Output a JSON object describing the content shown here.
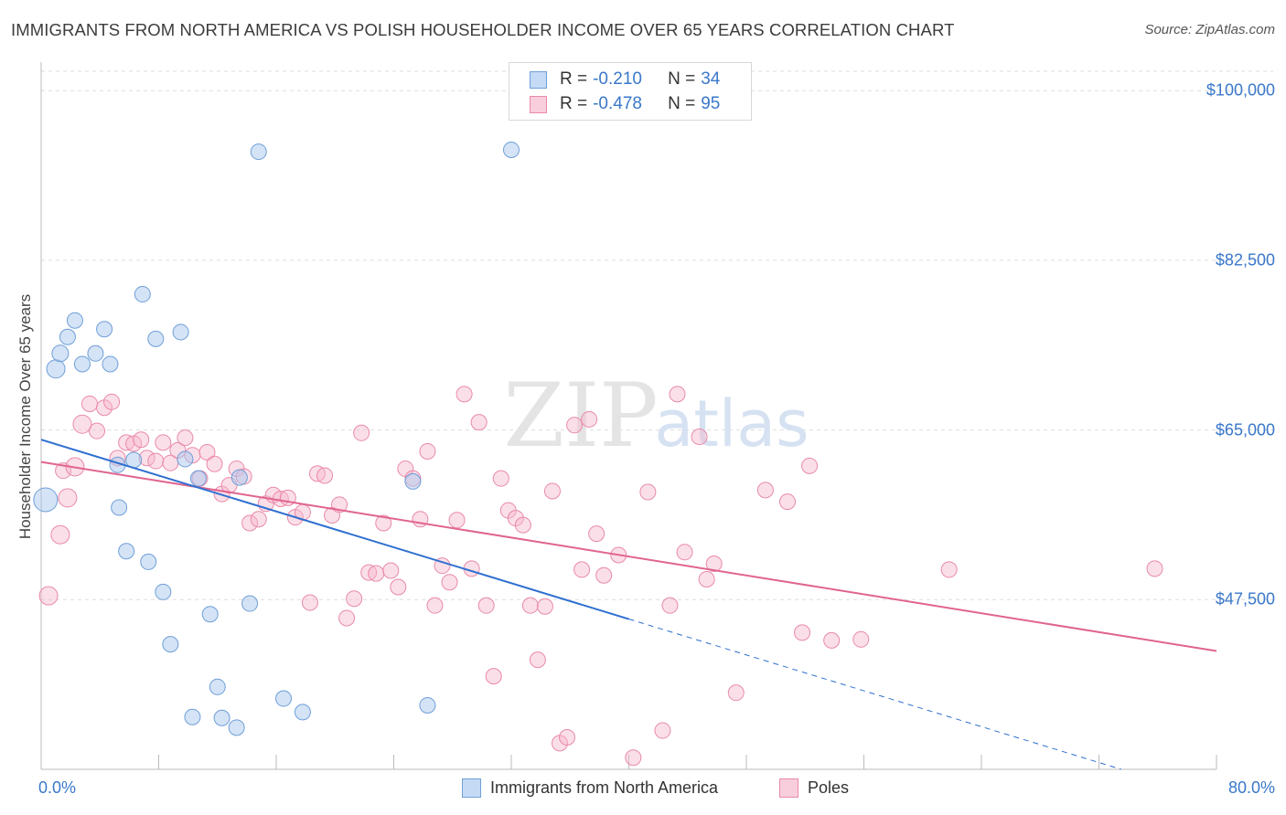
{
  "title": "IMMIGRANTS FROM NORTH AMERICA VS POLISH HOUSEHOLDER INCOME OVER 65 YEARS CORRELATION CHART",
  "source": "Source: ZipAtlas.com",
  "watermark": {
    "zip": "ZIP",
    "atlas": "atlas"
  },
  "legend_top": {
    "rows": [
      {
        "r_label": "R = ",
        "r_value": "-0.210",
        "n_label": "N = ",
        "n_value": "34"
      },
      {
        "r_label": "R = ",
        "r_value": "-0.478",
        "n_label": "N = ",
        "n_value": "95"
      }
    ]
  },
  "legend_bottom": [
    "Immigrants from North America",
    "Poles"
  ],
  "colors": {
    "blue_fill": "#a9c8ee",
    "blue_stroke": "#6f9fd8",
    "blue_line": "#2e6fd0",
    "pink_fill": "#f6b7cb",
    "pink_stroke": "#e98aa9",
    "pink_line": "#e06490",
    "tick_label": "#3a78c9",
    "grid": "#dddddd"
  },
  "chart_data": {
    "type": "scatter",
    "title": "IMMIGRANTS FROM NORTH AMERICA VS POLISH HOUSEHOLDER INCOME OVER 65 YEARS CORRELATION CHART",
    "xlabel": "",
    "ylabel": "Householder Income Over 65 years",
    "xlim": [
      0,
      80
    ],
    "ylim": [
      30000,
      102000
    ],
    "x_tick_labels": [
      "0.0%",
      "80.0%"
    ],
    "y_ticks": [
      47500,
      65000,
      82500,
      100000
    ],
    "y_tick_labels": [
      "$47,500",
      "$65,000",
      "$82,500",
      "$100,000"
    ],
    "grid": true,
    "legend_position": "top-center",
    "series": [
      {
        "name": "Immigrants from North America",
        "r": -0.21,
        "n": 34,
        "trend": {
          "x0": 0,
          "y0": 64000,
          "x1": 40,
          "y1": 45500,
          "dashed_to_x": 80,
          "dashed_y1": 27000
        },
        "points": [
          [
            0.3,
            57800,
            26
          ],
          [
            1.0,
            71300,
            20
          ],
          [
            1.3,
            72900,
            18
          ],
          [
            1.8,
            74600,
            17
          ],
          [
            2.3,
            76300,
            17
          ],
          [
            2.8,
            71800,
            17
          ],
          [
            3.7,
            72900,
            17
          ],
          [
            4.3,
            75400,
            17
          ],
          [
            4.7,
            71800,
            17
          ],
          [
            5.2,
            61400,
            17
          ],
          [
            5.3,
            57000,
            17
          ],
          [
            5.8,
            52500,
            17
          ],
          [
            6.3,
            61900,
            17
          ],
          [
            6.9,
            79000,
            17
          ],
          [
            7.3,
            51400,
            17
          ],
          [
            7.8,
            74400,
            17
          ],
          [
            8.3,
            48300,
            17
          ],
          [
            8.8,
            42900,
            17
          ],
          [
            9.5,
            75100,
            17
          ],
          [
            9.8,
            62000,
            17
          ],
          [
            10.3,
            35400,
            17
          ],
          [
            10.7,
            60000,
            17
          ],
          [
            11.5,
            46000,
            17
          ],
          [
            12.0,
            38500,
            17
          ],
          [
            12.3,
            35300,
            17
          ],
          [
            13.3,
            34300,
            17
          ],
          [
            13.5,
            60100,
            17
          ],
          [
            14.2,
            47100,
            17
          ],
          [
            14.8,
            93700,
            17
          ],
          [
            16.5,
            37300,
            17
          ],
          [
            17.8,
            35900,
            17
          ],
          [
            25.3,
            59700,
            17
          ],
          [
            26.3,
            36600,
            17
          ],
          [
            32.0,
            93900,
            17
          ]
        ]
      },
      {
        "name": "Poles",
        "r": -0.478,
        "n": 95,
        "trend": {
          "x0": 0,
          "y0": 61700,
          "x1": 80,
          "y1": 42200
        },
        "points": [
          [
            0.5,
            47900,
            20
          ],
          [
            1.3,
            54200,
            20
          ],
          [
            1.5,
            60800,
            17
          ],
          [
            1.8,
            58000,
            20
          ],
          [
            2.3,
            61200,
            20
          ],
          [
            2.8,
            65600,
            20
          ],
          [
            3.3,
            67700,
            17
          ],
          [
            3.8,
            64900,
            17
          ],
          [
            4.3,
            67300,
            17
          ],
          [
            4.8,
            67900,
            17
          ],
          [
            5.2,
            62100,
            17
          ],
          [
            5.8,
            63700,
            17
          ],
          [
            6.3,
            63600,
            17
          ],
          [
            6.8,
            64000,
            17
          ],
          [
            7.2,
            62100,
            17
          ],
          [
            7.8,
            61800,
            17
          ],
          [
            8.3,
            63700,
            17
          ],
          [
            8.8,
            61600,
            17
          ],
          [
            9.3,
            62900,
            17
          ],
          [
            9.8,
            64200,
            17
          ],
          [
            10.3,
            62400,
            17
          ],
          [
            10.8,
            60000,
            17
          ],
          [
            11.3,
            62700,
            17
          ],
          [
            11.8,
            61500,
            17
          ],
          [
            12.3,
            58400,
            17
          ],
          [
            12.8,
            59300,
            17
          ],
          [
            13.3,
            61000,
            17
          ],
          [
            13.8,
            60200,
            17
          ],
          [
            14.2,
            55400,
            17
          ],
          [
            14.8,
            55800,
            17
          ],
          [
            15.3,
            57400,
            17
          ],
          [
            15.8,
            58300,
            17
          ],
          [
            16.3,
            57900,
            17
          ],
          [
            16.8,
            58000,
            17
          ],
          [
            17.3,
            56000,
            17
          ],
          [
            17.8,
            56500,
            17
          ],
          [
            18.3,
            47200,
            17
          ],
          [
            18.8,
            60500,
            17
          ],
          [
            19.3,
            60300,
            17
          ],
          [
            19.8,
            56200,
            17
          ],
          [
            20.3,
            57300,
            17
          ],
          [
            20.8,
            45600,
            17
          ],
          [
            21.3,
            47600,
            17
          ],
          [
            21.8,
            64700,
            17
          ],
          [
            22.3,
            50300,
            17
          ],
          [
            22.8,
            50200,
            17
          ],
          [
            23.3,
            55400,
            17
          ],
          [
            23.8,
            50500,
            17
          ],
          [
            24.3,
            48800,
            17
          ],
          [
            24.8,
            61000,
            17
          ],
          [
            25.3,
            60000,
            17
          ],
          [
            25.8,
            55800,
            17
          ],
          [
            26.3,
            62800,
            17
          ],
          [
            26.8,
            46900,
            17
          ],
          [
            27.3,
            51000,
            17
          ],
          [
            27.8,
            49300,
            17
          ],
          [
            28.3,
            55700,
            17
          ],
          [
            28.8,
            68700,
            17
          ],
          [
            29.3,
            50700,
            17
          ],
          [
            29.8,
            65800,
            17
          ],
          [
            30.3,
            46900,
            17
          ],
          [
            30.8,
            39600,
            17
          ],
          [
            31.3,
            60000,
            17
          ],
          [
            31.8,
            56700,
            17
          ],
          [
            32.3,
            55900,
            17
          ],
          [
            32.8,
            55200,
            17
          ],
          [
            33.3,
            46900,
            17
          ],
          [
            33.8,
            41300,
            17
          ],
          [
            34.3,
            46800,
            17
          ],
          [
            34.8,
            58700,
            17
          ],
          [
            35.3,
            32700,
            17
          ],
          [
            35.8,
            33300,
            17
          ],
          [
            36.3,
            65500,
            17
          ],
          [
            36.8,
            50600,
            17
          ],
          [
            37.3,
            66100,
            17
          ],
          [
            37.8,
            54300,
            17
          ],
          [
            38.3,
            50000,
            17
          ],
          [
            39.3,
            52100,
            17
          ],
          [
            40.3,
            31200,
            17
          ],
          [
            41.3,
            58600,
            17
          ],
          [
            42.3,
            34000,
            17
          ],
          [
            42.8,
            46900,
            17
          ],
          [
            43.3,
            68700,
            17
          ],
          [
            43.8,
            52400,
            17
          ],
          [
            44.8,
            64300,
            17
          ],
          [
            45.3,
            49600,
            17
          ],
          [
            45.8,
            51200,
            17
          ],
          [
            47.3,
            37900,
            17
          ],
          [
            49.3,
            58800,
            17
          ],
          [
            50.8,
            57600,
            17
          ],
          [
            51.8,
            44100,
            17
          ],
          [
            52.3,
            61300,
            17
          ],
          [
            53.8,
            43300,
            17
          ],
          [
            55.8,
            43400,
            17
          ],
          [
            61.8,
            50600,
            17
          ],
          [
            75.8,
            50700,
            17
          ]
        ]
      }
    ]
  }
}
